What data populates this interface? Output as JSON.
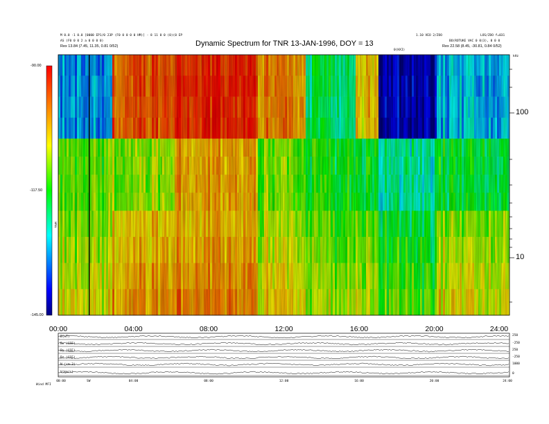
{
  "header": {
    "left_line1": "M 0.0 -1 0.0 [0000 EP1/0 23P (F0 0 0 0 0 HM)] - 8 11 0 0 (0)(0 EP",
    "left_line2": "AS (F0 0 0 2 a 0 0 0 0)",
    "left_line3": "Rex    13.84 (7.45, 11.35, 0.81 0/52)",
    "right_line1": "1.10 VEO 2/ZOO",
    "right_line2": "LOS/ZOO f=031",
    "right_line3": "BO(ROTUKE VAC 0 0(3), 0 0 0",
    "right_line4": "Rex    22.58 (8.45, -30.81, 0.84 0/52)",
    "top_center_small": "0(HXI)",
    "units_right": "kHz"
  },
  "chart_data": {
    "type": "heatmap",
    "title": "Dynamic Spectrum for TNR 13-JAN-1996, DOY = 13",
    "xlabel": "",
    "ylabel": "",
    "x_ticks": [
      "00:00",
      "04:00",
      "08:00",
      "12:00",
      "16:00",
      "20:00",
      "24:00"
    ],
    "x_range_hours": [
      0,
      24
    ],
    "y_scale": "log",
    "y_range_khz": [
      4,
      250
    ],
    "y_ticks_right": [
      "100",
      "10"
    ],
    "colorbar": {
      "label": "TNR",
      "ticks": [
        "-90.00",
        "-117.50",
        "-145.00"
      ],
      "range_db": [
        -145,
        -90
      ],
      "colors": [
        "#000080",
        "#0000ff",
        "#00ffff",
        "#00ff00",
        "#ffff00",
        "#ff8000",
        "#ff0000"
      ]
    },
    "band_boundaries_khz": [
      66,
      21
    ],
    "marker_time_hours": 1.65,
    "intensity_blocks": [
      {
        "t_start": 0.0,
        "t_end": 2.9,
        "f_upper_db": -132,
        "f_mid_db": -114,
        "f_low_db": -110
      },
      {
        "t_start": 2.9,
        "t_end": 6.2,
        "f_upper_db": -97,
        "f_mid_db": -112,
        "f_low_db": -104
      },
      {
        "t_start": 6.2,
        "t_end": 10.6,
        "f_upper_db": -92,
        "f_mid_db": -102,
        "f_low_db": -101
      },
      {
        "t_start": 10.6,
        "t_end": 13.2,
        "f_upper_db": -100,
        "f_mid_db": -113,
        "f_low_db": -108
      },
      {
        "t_start": 13.2,
        "t_end": 15.8,
        "f_upper_db": -122,
        "f_mid_db": -118,
        "f_low_db": -113
      },
      {
        "t_start": 15.8,
        "t_end": 17.0,
        "f_upper_db": -105,
        "f_mid_db": -119,
        "f_low_db": -112
      },
      {
        "t_start": 17.0,
        "t_end": 20.1,
        "f_upper_db": -142,
        "f_mid_db": -124,
        "f_low_db": -117
      },
      {
        "t_start": 20.1,
        "t_end": 24.0,
        "f_upper_db": -130,
        "f_mid_db": -120,
        "f_low_db": -110
      }
    ]
  },
  "timeseries_panel": {
    "left_labels": [
      "B(nT)",
      "Bx (GSE)",
      "By (GSE)",
      "Bz (GSE)",
      "N (cm-3)",
      "V(km/s)"
    ],
    "right_labels": [
      "250",
      "-250",
      "250",
      "-250",
      "1000",
      "0"
    ],
    "x_ticks": [
      "00:00",
      "04:00",
      "08:00",
      "12:00",
      "16:00",
      "20:00",
      "24:00"
    ],
    "footer_left": "Wind    MFI",
    "footer_marker": "SW"
  }
}
